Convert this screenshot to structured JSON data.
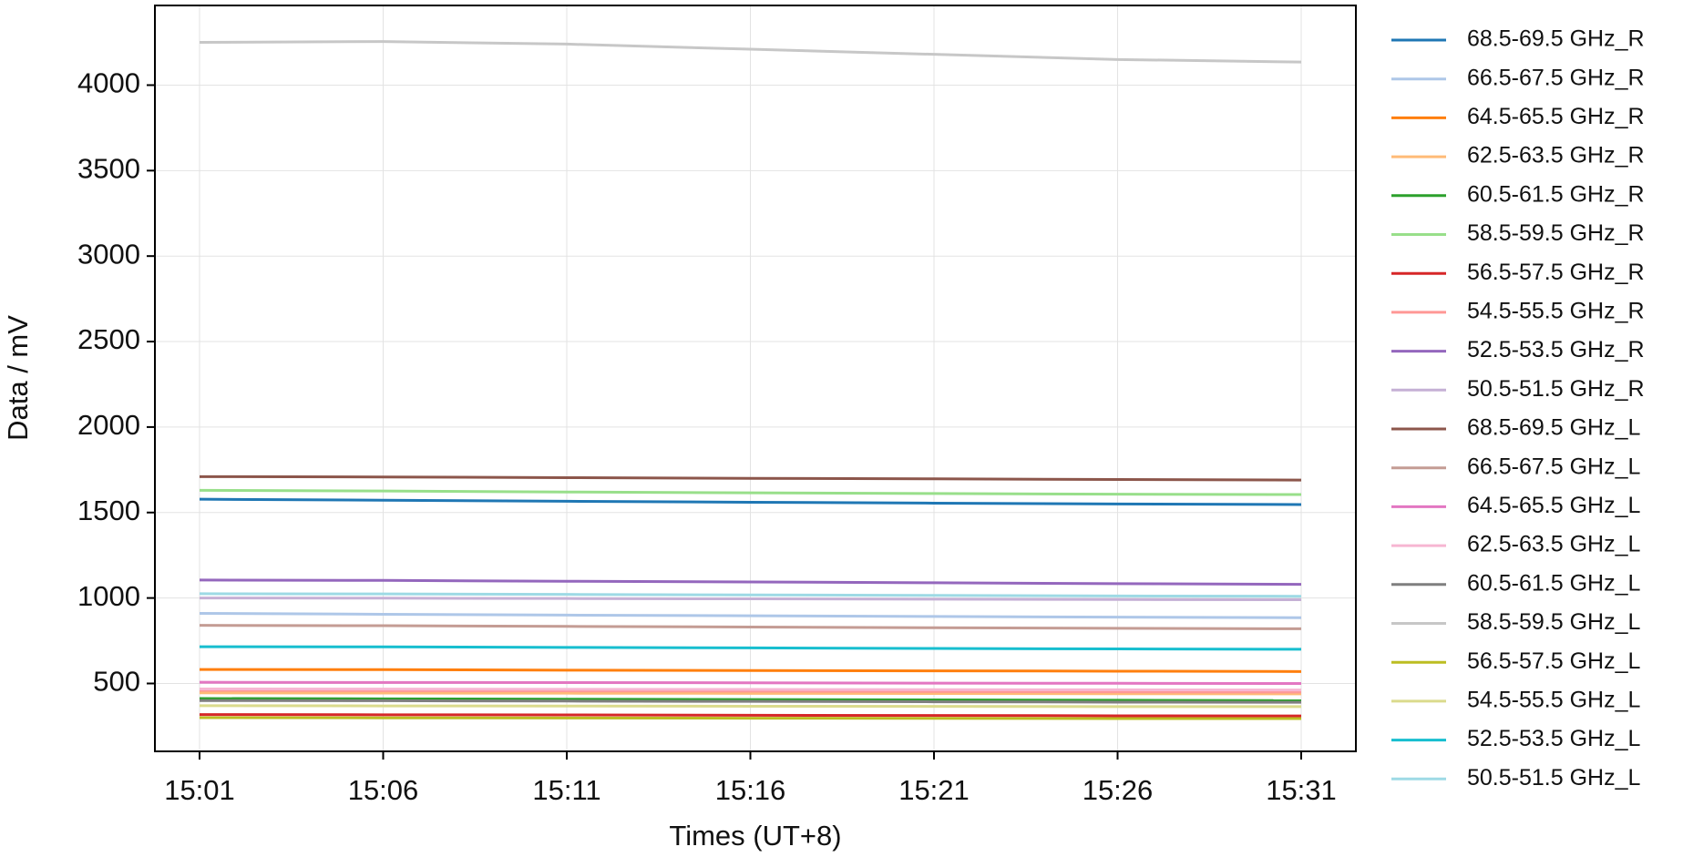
{
  "chart_data": {
    "type": "line",
    "x_label": "Times (UT+8)",
    "y_label": "Data / mV",
    "x": [
      "15:01",
      "15:06",
      "15:11",
      "15:16",
      "15:21",
      "15:26",
      "15:31"
    ],
    "ylim": [
      103,
      4466
    ],
    "yticks": [
      500,
      1000,
      1500,
      2000,
      2500,
      3000,
      3500,
      4000
    ],
    "grid": true,
    "series": [
      {
        "name": "68.5-69.5 GHz_R",
        "color": "#1f77b4",
        "values": [
          1578,
          1572,
          1566,
          1560,
          1555,
          1550,
          1547
        ]
      },
      {
        "name": "66.5-67.5 GHz_R",
        "color": "#aec7e8",
        "values": [
          910,
          905,
          900,
          896,
          892,
          888,
          885
        ]
      },
      {
        "name": "64.5-65.5 GHz_R",
        "color": "#ff7f0e",
        "values": [
          582,
          581,
          578,
          576,
          574,
          572,
          570
        ]
      },
      {
        "name": "62.5-63.5 GHz_R",
        "color": "#ffbb78",
        "values": [
          445,
          444,
          443,
          442,
          441,
          440,
          439
        ]
      },
      {
        "name": "60.5-61.5 GHz_R",
        "color": "#2ca02c",
        "values": [
          412,
          410,
          408,
          406,
          404,
          402,
          400
        ]
      },
      {
        "name": "58.5-59.5 GHz_R",
        "color": "#98df8a",
        "values": [
          1630,
          1626,
          1620,
          1615,
          1611,
          1607,
          1605
        ]
      },
      {
        "name": "56.5-57.5 GHz_R",
        "color": "#d62728",
        "values": [
          318,
          317,
          316,
          314,
          313,
          311,
          310
        ]
      },
      {
        "name": "54.5-55.5 GHz_R",
        "color": "#ff9896",
        "values": [
          460,
          458,
          457,
          455,
          453,
          451,
          450
        ]
      },
      {
        "name": "52.5-53.5 GHz_R",
        "color": "#9467bd",
        "values": [
          1105,
          1103,
          1098,
          1094,
          1089,
          1084,
          1080
        ]
      },
      {
        "name": "50.5-51.5 GHz_R",
        "color": "#c5b0d5",
        "values": [
          1000,
          999,
          997,
          995,
          993,
          991,
          990
        ]
      },
      {
        "name": "68.5-69.5 GHz_L",
        "color": "#8c564b",
        "values": [
          1710,
          1708,
          1704,
          1700,
          1697,
          1693,
          1690
        ]
      },
      {
        "name": "66.5-67.5 GHz_L",
        "color": "#c49c94",
        "values": [
          840,
          838,
          834,
          830,
          826,
          823,
          820
        ]
      },
      {
        "name": "64.5-65.5 GHz_L",
        "color": "#e377c2",
        "values": [
          507,
          506,
          505,
          504,
          502,
          501,
          500
        ]
      },
      {
        "name": "62.5-63.5 GHz_L",
        "color": "#f7b6d2",
        "values": [
          468,
          467,
          466,
          465,
          464,
          463,
          462
        ]
      },
      {
        "name": "60.5-61.5 GHz_L",
        "color": "#7f7f7f",
        "values": [
          400,
          399,
          397,
          395,
          393,
          391,
          390
        ]
      },
      {
        "name": "58.5-59.5 GHz_L",
        "color": "#c7c7c7",
        "values": [
          4250,
          4255,
          4240,
          4210,
          4180,
          4150,
          4135
        ]
      },
      {
        "name": "56.5-57.5 GHz_L",
        "color": "#bcbd22",
        "values": [
          300,
          299,
          298,
          297,
          296,
          295,
          295
        ]
      },
      {
        "name": "54.5-55.5 GHz_L",
        "color": "#dbdb8d",
        "values": [
          370,
          369,
          368,
          367,
          366,
          365,
          365
        ]
      },
      {
        "name": "52.5-53.5 GHz_L",
        "color": "#17becf",
        "values": [
          715,
          714,
          711,
          708,
          705,
          702,
          700
        ]
      },
      {
        "name": "50.5-51.5 GHz_L",
        "color": "#9edae5",
        "values": [
          1025,
          1024,
          1021,
          1018,
          1015,
          1012,
          1010
        ]
      }
    ]
  }
}
